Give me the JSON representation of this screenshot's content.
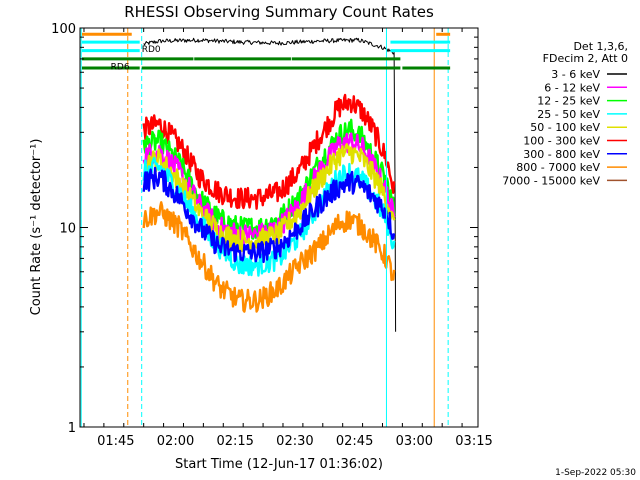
{
  "chart_data": {
    "type": "line",
    "title": "RHESSI Observing Summary Count Rates",
    "xlabel": "Start Time (12-Jun-17 01:36:02)",
    "ylabel": "Count Rate (s⁻¹ detector⁻¹)",
    "y_scale": "log",
    "ylim": [
      1,
      100
    ],
    "y_ticks": [
      {
        "value": 1,
        "label": "1"
      },
      {
        "value": 10,
        "label": "10"
      },
      {
        "value": 100,
        "label": "100"
      }
    ],
    "x_range_minutes": [
      0,
      100
    ],
    "x_ticks": [
      {
        "t": 9,
        "label": "01:45"
      },
      {
        "t": 24,
        "label": "02:00"
      },
      {
        "t": 39,
        "label": "02:15"
      },
      {
        "t": 54,
        "label": "02:30"
      },
      {
        "t": 69,
        "label": "02:45"
      },
      {
        "t": 84,
        "label": "03:00"
      },
      {
        "t": 99,
        "label": "03:15"
      }
    ],
    "legend": {
      "placement": "right",
      "header": [
        "Det 1,3,6,",
        "FDecim 2, Att 0"
      ],
      "entries": [
        {
          "label": "3 - 6 keV",
          "color": "#000000"
        },
        {
          "label": "6 - 12 keV",
          "color": "#ff00ff"
        },
        {
          "label": "12 - 25 keV",
          "color": "#00ff00"
        },
        {
          "label": "25 - 50 keV",
          "color": "#00ffff"
        },
        {
          "label": "50 - 100 keV",
          "color": "#e0e000"
        },
        {
          "label": "100 - 300 keV",
          "color": "#ff0000"
        },
        {
          "label": "300 - 800 keV",
          "color": "#0000ff"
        },
        {
          "label": "800 - 7000 keV",
          "color": "#ff8c00"
        },
        {
          "label": "7000 - 15000 keV",
          "color": "#a0522d"
        }
      ]
    },
    "series": [
      {
        "name": "3 - 6 keV",
        "color": "#000000",
        "x": [
          16,
          20,
          30,
          40,
          50,
          60,
          70,
          76,
          79,
          79.3
        ],
        "y": [
          83,
          86,
          87,
          85,
          84,
          86,
          87,
          80,
          75,
          3
        ]
      },
      {
        "name": "100 - 300 keV",
        "color": "#ff0000",
        "x": [
          16,
          20,
          25,
          30,
          35,
          40,
          45,
          50,
          55,
          60,
          65,
          68,
          71,
          74,
          77,
          79
        ],
        "y": [
          31,
          33,
          26,
          18,
          15,
          14,
          14,
          15,
          19,
          28,
          40,
          43,
          38,
          30,
          22,
          15
        ]
      },
      {
        "name": "12 - 25 keV",
        "color": "#00ff00",
        "x": [
          16,
          20,
          25,
          30,
          35,
          40,
          45,
          50,
          55,
          60,
          65,
          68,
          71,
          74,
          77,
          79
        ],
        "y": [
          26,
          27,
          21,
          14,
          11,
          10,
          10,
          11,
          14,
          21,
          29,
          31,
          28,
          22,
          17,
          12
        ]
      },
      {
        "name": "6 - 12 keV",
        "color": "#ff00ff",
        "x": [
          16,
          20,
          25,
          30,
          35,
          40,
          45,
          50,
          55,
          60,
          65,
          68,
          71,
          74,
          77,
          79
        ],
        "y": [
          23,
          24,
          19,
          13,
          10,
          9.2,
          9.2,
          10,
          13,
          19,
          26,
          27,
          25,
          20,
          15,
          11
        ]
      },
      {
        "name": "50 - 100 keV",
        "color": "#e0e000",
        "x": [
          16,
          20,
          25,
          30,
          35,
          40,
          45,
          50,
          55,
          60,
          65,
          68,
          71,
          74,
          77,
          79
        ],
        "y": [
          21,
          22,
          17,
          12,
          9.5,
          8.6,
          8.6,
          9.3,
          12,
          17,
          23,
          24,
          22,
          18,
          14,
          10
        ]
      },
      {
        "name": "25 - 50 keV",
        "color": "#00ffff",
        "x": [
          16,
          20,
          25,
          30,
          35,
          40,
          45,
          50,
          55,
          60,
          65,
          68,
          71,
          74,
          77,
          79
        ],
        "y": [
          19,
          20,
          15,
          10.5,
          8,
          6.5,
          6.5,
          7,
          9,
          13,
          18,
          19,
          17,
          14,
          11,
          8
        ]
      },
      {
        "name": "300 - 800 keV",
        "color": "#0000ff",
        "x": [
          16,
          20,
          25,
          30,
          35,
          40,
          45,
          50,
          55,
          60,
          65,
          68,
          71,
          74,
          77,
          79
        ],
        "y": [
          17,
          18,
          14,
          10,
          8,
          7.5,
          7.5,
          8,
          10,
          13,
          16,
          17,
          16,
          14,
          12,
          9
        ]
      },
      {
        "name": "800 - 7000 keV",
        "color": "#ff8c00",
        "x": [
          16,
          20,
          25,
          30,
          35,
          40,
          45,
          50,
          55,
          60,
          65,
          68,
          71,
          74,
          77,
          79
        ],
        "y": [
          11,
          12,
          10,
          7,
          5,
          4.3,
          4.3,
          5,
          6.5,
          8,
          10.5,
          11,
          10,
          8.5,
          7,
          5.5
        ]
      }
    ],
    "vertical_lines": [
      {
        "t": 0.3,
        "color": "#00ffff",
        "style": "solid"
      },
      {
        "t": 12,
        "color": "#ff8c00",
        "style": "dashed"
      },
      {
        "t": 15.5,
        "color": "#00ffff",
        "style": "dashed"
      },
      {
        "t": 77,
        "color": "#00ffff",
        "style": "solid"
      },
      {
        "t": 89,
        "color": "#ff8c00",
        "style": "solid"
      },
      {
        "t": 92.5,
        "color": "#00ffff",
        "style": "dashed"
      }
    ],
    "status_bars": [
      {
        "color": "#ff8c00",
        "y": 93,
        "segments": [
          [
            0.5,
            13
          ],
          [
            89.5,
            93
          ]
        ]
      },
      {
        "color": "#00ffff",
        "y": 85,
        "segments": [
          [
            0.5,
            15
          ],
          [
            78,
            93
          ]
        ]
      },
      {
        "color": "#00ffff",
        "y": 77,
        "segments": [
          [
            0.5,
            15
          ],
          [
            78,
            93
          ]
        ]
      },
      {
        "color": "#008000",
        "y": 70,
        "segments": [
          [
            0.5,
            28.5
          ],
          [
            28.7,
            53
          ],
          [
            53.2,
            80.5
          ]
        ]
      },
      {
        "color": "#008000",
        "y": 63,
        "segments": [
          [
            0.5,
            15
          ],
          [
            15.5,
            80.5
          ],
          [
            81,
            93
          ]
        ]
      }
    ],
    "bar_labels": [
      {
        "text": "RD0",
        "t": 15.5,
        "y": 76
      },
      {
        "text": "RD6",
        "t": 7.7,
        "y": 62
      }
    ]
  },
  "timestamp": "1-Sep-2022 05:30"
}
